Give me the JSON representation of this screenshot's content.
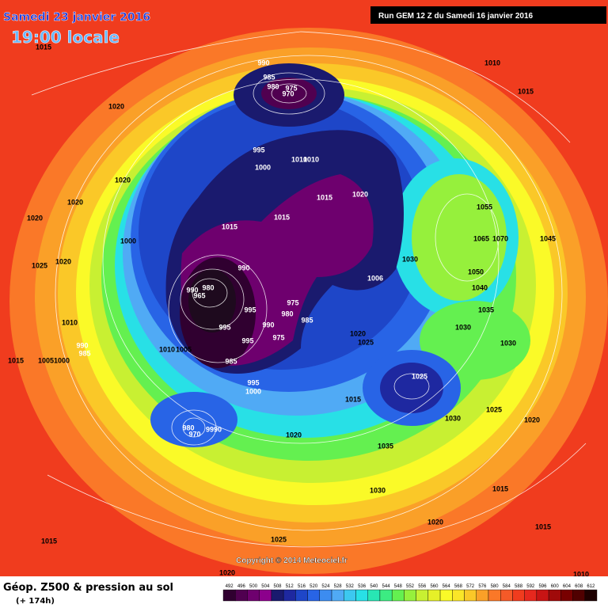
{
  "header": {
    "date": "Samedi 23 janvier 2016",
    "time": "19:00 locale",
    "run": "Run GEM 12 Z du Samedi 16 janvier 2016"
  },
  "isobar_labels": [
    "1015",
    "990",
    "985",
    "980",
    "975",
    "970",
    "1010",
    "1015",
    "1020",
    "995",
    "1000",
    "1010",
    "1010",
    "1020",
    "1020",
    "1015",
    "1020",
    "1055",
    "1020",
    "1015",
    "1015",
    "1065",
    "1070",
    "1045",
    "1000",
    "1025",
    "1020",
    "1030",
    "990",
    "1050",
    "1006",
    "980",
    "990",
    "965",
    "975",
    "1040",
    "995",
    "980",
    "985",
    "1035",
    "1010",
    "990",
    "995",
    "1030",
    "1020",
    "995",
    "975",
    "1025",
    "1030",
    "990",
    "985",
    "1010",
    "1005",
    "1015",
    "1005",
    "1000",
    "985",
    "995",
    "1025",
    "1000",
    "1015",
    "1030",
    "1025",
    "1020",
    "980",
    "9990",
    "970",
    "1020",
    "1035",
    "1030",
    "1015",
    "1020",
    "1015",
    "1015",
    "1025",
    "1020",
    "1010"
  ],
  "copyright": "Copyright © 2014 Meteociel.fr",
  "footer": {
    "title": "Géop. Z500 & pression au sol",
    "subtitle": "(+ 174h)"
  },
  "scale": {
    "labels": [
      "492",
      "496",
      "500",
      "504",
      "508",
      "512",
      "516",
      "520",
      "524",
      "528",
      "532",
      "536",
      "540",
      "544",
      "548",
      "552",
      "556",
      "560",
      "564",
      "568",
      "572",
      "576",
      "580",
      "584",
      "588",
      "592",
      "596",
      "600",
      "604",
      "608",
      "612"
    ],
    "colors": [
      "#300030",
      "#500050",
      "#6e006e",
      "#8c008c",
      "#1a1a6e",
      "#1e28a0",
      "#1e46c8",
      "#2864e6",
      "#3c8cf0",
      "#50aaf5",
      "#3cc8f0",
      "#28e0e6",
      "#28e6b4",
      "#3cec82",
      "#64f050",
      "#96f03c",
      "#c8f032",
      "#e6f028",
      "#fafa28",
      "#fae628",
      "#fac828",
      "#faa028",
      "#fa7828",
      "#f55a28",
      "#f03c1e",
      "#e6281e",
      "#c81414",
      "#a00a0a",
      "#780000",
      "#500000",
      "#1e0000"
    ]
  }
}
